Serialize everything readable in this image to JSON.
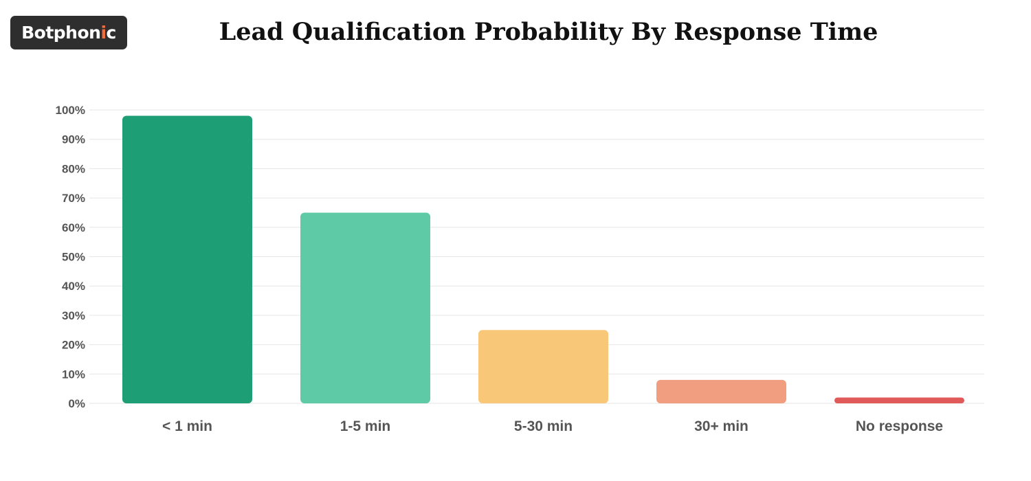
{
  "logo": {
    "text_main": "Botphon",
    "text_accent": "i",
    "text_end": "c"
  },
  "chart_data": {
    "type": "bar",
    "title": "Lead Qualification Probability By Response Time",
    "categories": [
      "< 1 min",
      "1-5 min",
      "5-30 min",
      "30+ min",
      "No response"
    ],
    "values": [
      98,
      65,
      25,
      8,
      2
    ],
    "colors": [
      "#1e9e74",
      "#5ecba6",
      "#f8c878",
      "#f09d80",
      "#e05a5a"
    ],
    "ylim": [
      0,
      100
    ],
    "yticks": [
      "0%",
      "10%",
      "20%",
      "30%",
      "40%",
      "50%",
      "60%",
      "70%",
      "80%",
      "90%",
      "100%"
    ],
    "grid": true,
    "xlabel": "",
    "ylabel": ""
  }
}
